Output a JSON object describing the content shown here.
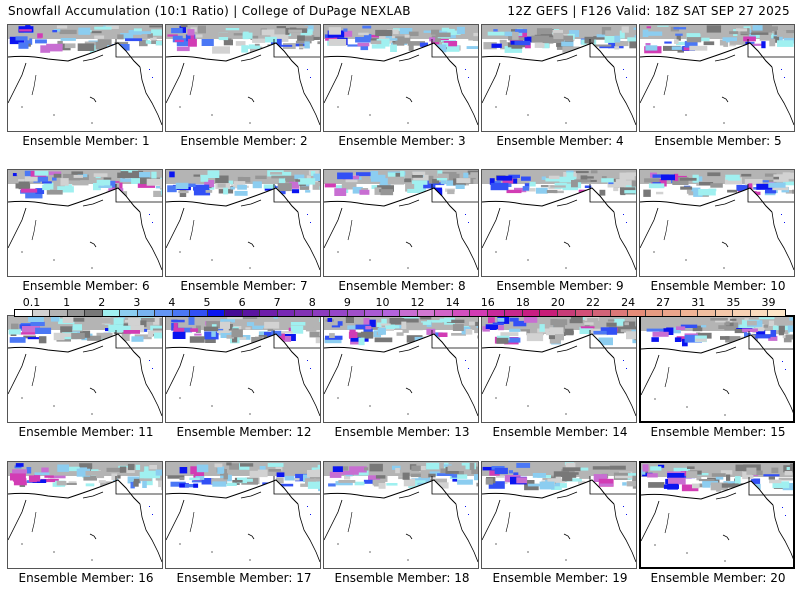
{
  "header": {
    "left_title": "Snowfall Accumulation (10:1 Ratio) | College of DuPage NEXLAB",
    "right_title": "12Z GEFS | F126 Valid: 18Z SAT SEP 27 2025"
  },
  "colorbar": {
    "labels": [
      "0.1",
      "1",
      "2",
      "3",
      "4",
      "5",
      "6",
      "7",
      "8",
      "9",
      "10",
      "12",
      "14",
      "16",
      "18",
      "20",
      "22",
      "24",
      "27",
      "31",
      "35",
      "39"
    ],
    "colors": [
      "#ffffff",
      "#d2d2d2",
      "#b4b4b4",
      "#969696",
      "#787878",
      "#a0f0f0",
      "#8ccdf0",
      "#78b4f0",
      "#6496f5",
      "#4b78f5",
      "#3250f5",
      "#0a14f0",
      "#460a96",
      "#5a14a0",
      "#6e1eaa",
      "#7828b4",
      "#8232b4",
      "#8c3cbe",
      "#9646c8",
      "#a050c8",
      "#aa5ad2",
      "#b464dc",
      "#c86ed2",
      "#d278d2",
      "#d264c8",
      "#d250be",
      "#d23cb4",
      "#c8289b",
      "#c8288c",
      "#c81e82",
      "#c81e78",
      "#c83c78",
      "#d25078",
      "#d26478",
      "#dc7878",
      "#e68c78",
      "#e69b82",
      "#eba58c",
      "#f0b496",
      "#f0bea0",
      "#f5c8aa",
      "#f8d2b4",
      "#fadcbe",
      "#fde6c8"
    ]
  },
  "members": [
    {
      "caption": "Ensemble Member: 1"
    },
    {
      "caption": "Ensemble Member: 2"
    },
    {
      "caption": "Ensemble Member: 3"
    },
    {
      "caption": "Ensemble Member: 4"
    },
    {
      "caption": "Ensemble Member: 5"
    },
    {
      "caption": "Ensemble Member: 6"
    },
    {
      "caption": "Ensemble Member: 7"
    },
    {
      "caption": "Ensemble Member: 8"
    },
    {
      "caption": "Ensemble Member: 9"
    },
    {
      "caption": "Ensemble Member: 10"
    },
    {
      "caption": "Ensemble Member: 11"
    },
    {
      "caption": "Ensemble Member: 12"
    },
    {
      "caption": "Ensemble Member: 13"
    },
    {
      "caption": "Ensemble Member: 14"
    },
    {
      "caption": "Ensemble Member: 15"
    },
    {
      "caption": "Ensemble Member: 16"
    },
    {
      "caption": "Ensemble Member: 17"
    },
    {
      "caption": "Ensemble Member: 18"
    },
    {
      "caption": "Ensemble Member: 19"
    },
    {
      "caption": "Ensemble Member: 20"
    }
  ]
}
